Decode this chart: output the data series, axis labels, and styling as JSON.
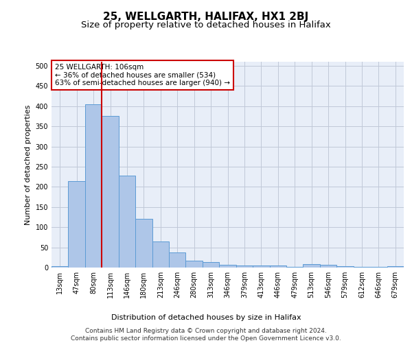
{
  "title": "25, WELLGARTH, HALIFAX, HX1 2BJ",
  "subtitle": "Size of property relative to detached houses in Halifax",
  "xlabel": "Distribution of detached houses by size in Halifax",
  "ylabel": "Number of detached properties",
  "footer_line1": "Contains HM Land Registry data © Crown copyright and database right 2024.",
  "footer_line2": "Contains public sector information licensed under the Open Government Licence v3.0.",
  "annotation_title": "25 WELLGARTH: 106sqm",
  "annotation_line1": "← 36% of detached houses are smaller (534)",
  "annotation_line2": "63% of semi-detached houses are larger (940) →",
  "bar_labels": [
    "13sqm",
    "47sqm",
    "80sqm",
    "113sqm",
    "146sqm",
    "180sqm",
    "213sqm",
    "246sqm",
    "280sqm",
    "313sqm",
    "346sqm",
    "379sqm",
    "413sqm",
    "446sqm",
    "479sqm",
    "513sqm",
    "546sqm",
    "579sqm",
    "612sqm",
    "646sqm",
    "679sqm"
  ],
  "bar_values": [
    3,
    215,
    405,
    375,
    228,
    120,
    65,
    38,
    17,
    13,
    7,
    5,
    5,
    5,
    2,
    8,
    7,
    3,
    2,
    1,
    3
  ],
  "bar_color": "#aec6e8",
  "bar_edge_color": "#5b9bd5",
  "vline_color": "#cc0000",
  "vline_position": 2.5,
  "ylim": [
    0,
    510
  ],
  "yticks": [
    0,
    50,
    100,
    150,
    200,
    250,
    300,
    350,
    400,
    450,
    500
  ],
  "grid_color": "#c0c8d8",
  "background_color": "#e8eef8",
  "title_fontsize": 11,
  "subtitle_fontsize": 9.5,
  "axis_label_fontsize": 8,
  "tick_fontsize": 7,
  "footer_fontsize": 6.5,
  "annotation_fontsize": 7.5
}
